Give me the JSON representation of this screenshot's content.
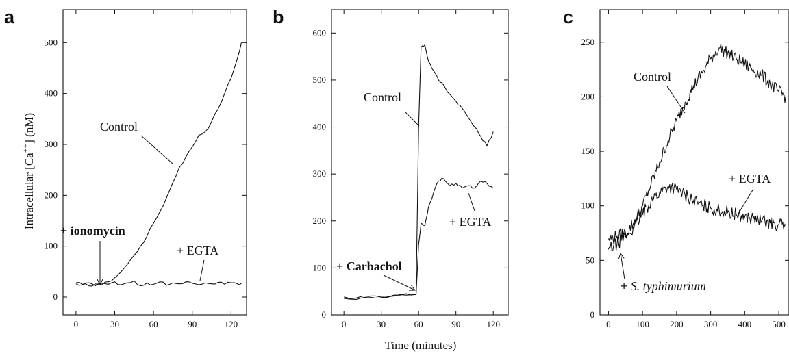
{
  "xlabel": "Time (minutes)",
  "ylabel": "Intracellular [Ca++] (nM)",
  "chart_data": [
    {
      "panel": "a",
      "type": "line",
      "xlim": [
        -10,
        132
      ],
      "ylim": [
        -35,
        565
      ],
      "xticks": [
        0,
        30,
        60,
        90,
        120
      ],
      "yticks": [
        0,
        100,
        200,
        300,
        400,
        500
      ],
      "series": [
        {
          "name": "Control",
          "x": [
            0,
            5,
            10,
            15,
            20,
            25,
            30,
            35,
            40,
            45,
            50,
            55,
            60,
            65,
            70,
            75,
            80,
            85,
            90,
            95,
            100,
            105,
            110,
            115,
            120,
            125,
            128
          ],
          "y": [
            28,
            25,
            22,
            26,
            24,
            30,
            38,
            50,
            65,
            82,
            100,
            120,
            145,
            168,
            195,
            225,
            255,
            275,
            295,
            318,
            325,
            345,
            370,
            400,
            430,
            470,
            500
          ]
        },
        {
          "name": "+ EGTA",
          "x": [
            0,
            5,
            10,
            15,
            20,
            25,
            30,
            35,
            40,
            45,
            50,
            55,
            60,
            65,
            70,
            75,
            80,
            85,
            90,
            95,
            100,
            105,
            110,
            115,
            120,
            125,
            128
          ],
          "y": [
            26,
            24,
            28,
            22,
            27,
            25,
            30,
            24,
            28,
            32,
            22,
            28,
            25,
            30,
            23,
            28,
            26,
            30,
            27,
            24,
            28,
            26,
            29,
            25,
            28,
            26,
            27
          ]
        }
      ],
      "annotations": [
        "Control",
        "+ EGTA",
        "+ ionomycin"
      ]
    },
    {
      "panel": "b",
      "type": "line",
      "xlim": [
        -10,
        132
      ],
      "ylim": [
        0,
        650
      ],
      "xticks": [
        0,
        30,
        60,
        90,
        120
      ],
      "yticks": [
        0,
        100,
        200,
        300,
        400,
        500,
        600
      ],
      "series": [
        {
          "name": "Control",
          "x": [
            0,
            10,
            20,
            30,
            40,
            50,
            58,
            60,
            62,
            65,
            68,
            72,
            76,
            80,
            85,
            90,
            95,
            100,
            105,
            110,
            115,
            120
          ],
          "y": [
            38,
            36,
            40,
            38,
            42,
            45,
            44,
            400,
            570,
            575,
            540,
            520,
            500,
            490,
            470,
            455,
            440,
            420,
            400,
            380,
            360,
            390
          ]
        },
        {
          "name": "+ EGTA",
          "x": [
            0,
            10,
            20,
            30,
            40,
            50,
            58,
            60,
            62,
            65,
            68,
            72,
            76,
            80,
            85,
            90,
            95,
            100,
            105,
            110,
            115,
            120
          ],
          "y": [
            35,
            33,
            38,
            36,
            40,
            42,
            43,
            150,
            195,
            190,
            230,
            260,
            285,
            290,
            275,
            280,
            270,
            275,
            270,
            285,
            280,
            270
          ]
        }
      ],
      "annotations": [
        "Control",
        "+ EGTA",
        "+ Carbachol"
      ]
    },
    {
      "panel": "c",
      "type": "line",
      "xlim": [
        -25,
        530
      ],
      "ylim": [
        0,
        280
      ],
      "xticks": [
        0,
        100,
        200,
        300,
        400,
        500
      ],
      "yticks": [
        0,
        50,
        100,
        150,
        200,
        250
      ],
      "series": [
        {
          "name": "Control",
          "x": [
            0,
            25,
            50,
            75,
            100,
            125,
            150,
            175,
            200,
            225,
            250,
            275,
            300,
            325,
            350,
            375,
            400,
            425,
            450,
            475,
            500,
            520
          ],
          "y": [
            70,
            72,
            75,
            85,
            100,
            120,
            140,
            160,
            178,
            195,
            210,
            222,
            235,
            245,
            240,
            235,
            230,
            225,
            220,
            212,
            205,
            200
          ]
        },
        {
          "name": "+ EGTA",
          "x": [
            0,
            25,
            50,
            75,
            100,
            125,
            150,
            175,
            200,
            225,
            250,
            275,
            300,
            325,
            350,
            375,
            400,
            425,
            450,
            475,
            500,
            520
          ],
          "y": [
            60,
            65,
            72,
            80,
            92,
            105,
            112,
            118,
            115,
            110,
            105,
            100,
            98,
            96,
            94,
            92,
            90,
            88,
            86,
            84,
            83,
            82
          ]
        }
      ],
      "annotations": [
        "Control",
        "+ EGTA",
        "+ S. typhimurium"
      ]
    }
  ],
  "panel_letters": [
    "a",
    "b",
    "c"
  ]
}
